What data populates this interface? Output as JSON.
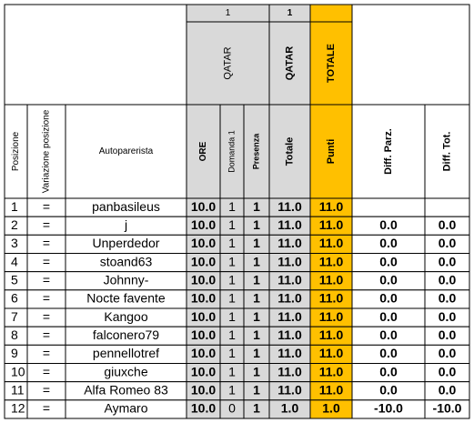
{
  "header": {
    "top": {
      "qatar_round": "1",
      "totale_round": "1"
    },
    "groups": {
      "qatar": "QATAR",
      "qatar_totale": "QATAR",
      "totale": "TOTALE"
    },
    "columns": [
      "Posizione",
      "Variazione posizione",
      "Autoparerista",
      "ORE",
      "Domanda 1",
      "Presenza",
      "Totale",
      "Punti",
      "Diff. Parz.",
      "Diff. Tot."
    ]
  },
  "rows": [
    [
      "1",
      "=",
      "panbasileus",
      "10.0",
      "1",
      "1",
      "11.0",
      "11.0"
    ],
    [
      "2",
      "=",
      "j",
      "10.0",
      "1",
      "1",
      "11.0",
      "11.0",
      "0.0",
      "0.0"
    ],
    [
      "3",
      "=",
      "Unperdedor",
      "10.0",
      "1",
      "1",
      "11.0",
      "11.0",
      "0.0",
      "0.0"
    ],
    [
      "4",
      "=",
      "stoand63",
      "10.0",
      "1",
      "1",
      "11.0",
      "11.0",
      "0.0",
      "0.0"
    ],
    [
      "5",
      "=",
      "Johnny-",
      "10.0",
      "1",
      "1",
      "11.0",
      "11.0",
      "0.0",
      "0.0"
    ],
    [
      "6",
      "=",
      "Nocte favente",
      "10.0",
      "1",
      "1",
      "11.0",
      "11.0",
      "0.0",
      "0.0"
    ],
    [
      "7",
      "=",
      "Kangoo",
      "10.0",
      "1",
      "1",
      "11.0",
      "11.0",
      "0.0",
      "0.0"
    ],
    [
      "8",
      "=",
      "falconero79",
      "10.0",
      "1",
      "1",
      "11.0",
      "11.0",
      "0.0",
      "0.0"
    ],
    [
      "9",
      "=",
      "pennellotref",
      "10.0",
      "1",
      "1",
      "11.0",
      "11.0",
      "0.0",
      "0.0"
    ],
    [
      "10",
      "=",
      "giuxche",
      "10.0",
      "1",
      "1",
      "11.0",
      "11.0",
      "0.0",
      "0.0"
    ],
    [
      "11",
      "=",
      "Alfa Romeo 83",
      "10.0",
      "1",
      "1",
      "11.0",
      "11.0",
      "0.0",
      "0.0"
    ],
    [
      "12",
      "=",
      "Aymaro",
      "10.0",
      "0",
      "1",
      "1.0",
      "1.0",
      "-10.0",
      "-10.0"
    ]
  ]
}
